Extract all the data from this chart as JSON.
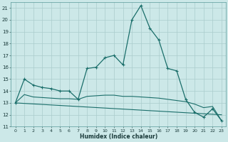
{
  "xlabel": "Humidex (Indice chaleur)",
  "bg_color": "#cce8e8",
  "grid_color": "#aacccc",
  "line_color": "#1a6e6a",
  "xlim": [
    -0.5,
    23.5
  ],
  "ylim": [
    11,
    21.5
  ],
  "yticks": [
    11,
    12,
    13,
    14,
    15,
    16,
    17,
    18,
    19,
    20,
    21
  ],
  "xticks": [
    0,
    1,
    2,
    3,
    4,
    5,
    6,
    7,
    8,
    9,
    10,
    11,
    12,
    13,
    14,
    15,
    16,
    17,
    18,
    19,
    20,
    21,
    22,
    23
  ],
  "line1_x": [
    0,
    1,
    2,
    3,
    4,
    5,
    6,
    7,
    8,
    9,
    10,
    11,
    12,
    13,
    14,
    15,
    16,
    17,
    18,
    19,
    20,
    21,
    22,
    23
  ],
  "line1_y": [
    13.0,
    15.0,
    14.5,
    14.3,
    14.2,
    14.0,
    14.0,
    13.3,
    15.9,
    16.0,
    16.8,
    17.0,
    16.2,
    20.0,
    21.2,
    19.3,
    18.3,
    15.9,
    15.7,
    13.3,
    12.2,
    11.8,
    12.5,
    11.5
  ],
  "line2_x": [
    0,
    23
  ],
  "line2_y": [
    13.0,
    12.0
  ],
  "line3_x": [
    0,
    1,
    2,
    3,
    4,
    5,
    6,
    7,
    8,
    9,
    10,
    11,
    12,
    13,
    14,
    15,
    16,
    17,
    18,
    19,
    20,
    21,
    22,
    23
  ],
  "line3_y": [
    13.0,
    13.7,
    13.5,
    13.45,
    13.4,
    13.35,
    13.35,
    13.3,
    13.55,
    13.6,
    13.65,
    13.65,
    13.55,
    13.55,
    13.5,
    13.45,
    13.4,
    13.3,
    13.2,
    13.1,
    12.9,
    12.6,
    12.7,
    11.5
  ]
}
